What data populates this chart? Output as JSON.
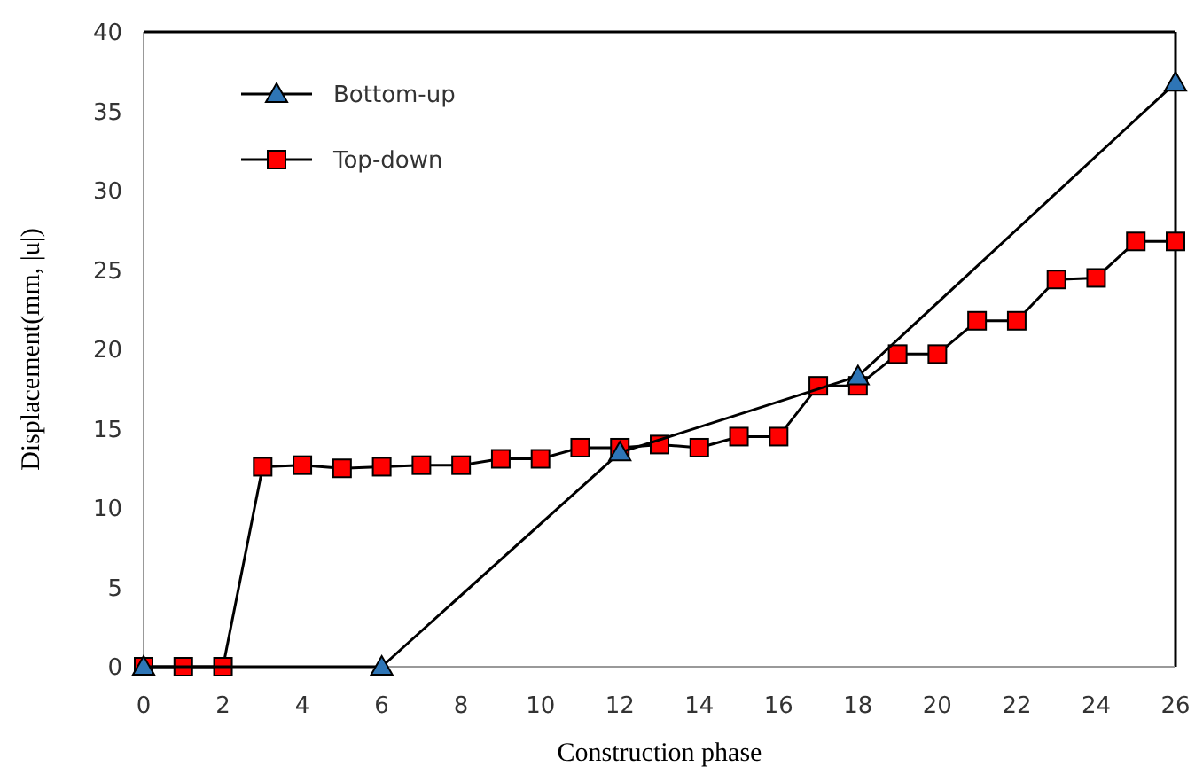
{
  "chart_data": {
    "type": "line",
    "xlabel": "Construction phase",
    "ylabel": "Displacement(mm, |u|)",
    "xlim": [
      0,
      26
    ],
    "xticks": [
      0,
      2,
      4,
      6,
      8,
      10,
      12,
      14,
      16,
      18,
      20,
      22,
      24,
      26
    ],
    "ylim": [
      0,
      40
    ],
    "yticks": [
      0,
      5,
      10,
      15,
      20,
      25,
      30,
      35,
      40
    ],
    "legend": "top left",
    "grid": false,
    "series": [
      {
        "name": "Bottom-up",
        "color": "#2e75b6",
        "marker": "triangle",
        "x": [
          0,
          6,
          12,
          18,
          26
        ],
        "values": [
          0,
          0,
          13.5,
          18.3,
          36.8
        ]
      },
      {
        "name": "Top-down",
        "color": "#ff0000",
        "marker": "square",
        "x": [
          0,
          1,
          2,
          3,
          4,
          5,
          6,
          7,
          8,
          9,
          10,
          11,
          12,
          13,
          14,
          15,
          16,
          17,
          18,
          19,
          20,
          21,
          22,
          23,
          24,
          25,
          26
        ],
        "values": [
          0,
          0,
          0,
          12.6,
          12.7,
          12.5,
          12.6,
          12.7,
          12.7,
          13.1,
          13.1,
          13.8,
          13.8,
          14.0,
          13.8,
          14.5,
          14.5,
          17.7,
          17.7,
          19.7,
          19.7,
          21.8,
          21.8,
          24.4,
          24.5,
          26.8,
          26.8
        ]
      }
    ]
  }
}
